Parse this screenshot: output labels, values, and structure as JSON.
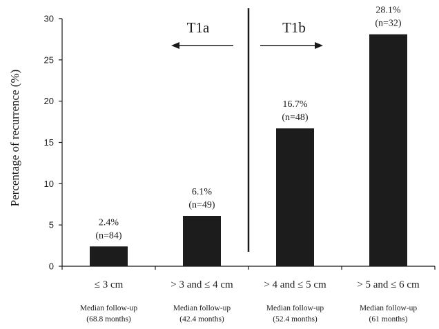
{
  "chart_data": {
    "type": "bar",
    "categories": [
      "≤ 3 cm",
      "> 3 and ≤ 4 cm",
      "> 4 and ≤ 5 cm",
      "> 5 and ≤ 6 cm"
    ],
    "values": [
      2.4,
      6.1,
      16.7,
      28.1
    ],
    "data_labels": [
      {
        "pct": "2.4%",
        "n": "(n=84)"
      },
      {
        "pct": "6.1%",
        "n": "(n=49)"
      },
      {
        "pct": "16.7%",
        "n": "(n=48)"
      },
      {
        "pct": "28.1%",
        "n": "(n=32)"
      }
    ],
    "footnotes": [
      {
        "line1": "Median follow-up",
        "line2": "(68.8 months)"
      },
      {
        "line1": "Median follow-up",
        "line2": "(42.4 months)"
      },
      {
        "line1": "Median follow-up",
        "line2": "(52.4 months)"
      },
      {
        "line1": "Median follow-up",
        "line2": "(61 months)"
      }
    ],
    "ylabel": "Percentage of recurrence (%)",
    "ylim": [
      0,
      30
    ],
    "yticks": [
      0,
      5,
      10,
      15,
      20,
      25,
      30
    ],
    "grid": false,
    "bar_color": "#1c1c1c",
    "regions": {
      "left": "T1a",
      "right": "T1b"
    }
  }
}
